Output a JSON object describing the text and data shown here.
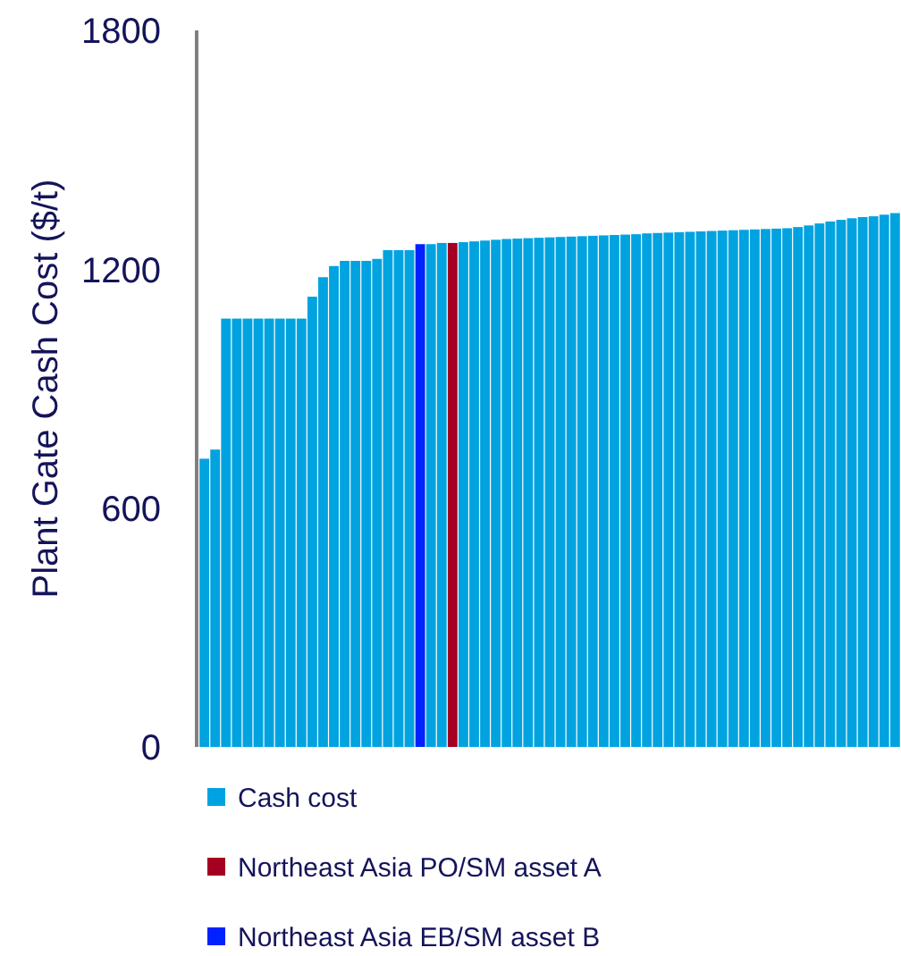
{
  "chart_data": {
    "type": "bar",
    "ylabel": "Plant Gate Cash Cost ($/t)",
    "stacked": true,
    "ylim": [
      0,
      1800
    ],
    "yticks": [
      0,
      600,
      1200,
      1800
    ],
    "grid": false,
    "legend": "bottom",
    "categories": [
      null,
      null,
      null,
      null,
      null,
      null,
      null,
      null,
      null,
      null,
      null,
      null,
      null,
      null,
      null,
      null,
      null,
      null,
      null,
      null,
      null,
      null,
      null,
      null,
      null,
      null,
      null,
      null,
      null,
      null,
      null,
      null,
      null,
      null,
      null,
      null,
      null,
      null,
      null,
      null,
      null,
      null,
      null,
      null,
      null,
      null,
      null,
      null,
      null,
      null,
      null,
      null,
      null,
      null,
      null,
      null,
      null,
      null,
      null,
      null,
      null,
      null,
      null,
      null,
      null
    ],
    "series": [
      {
        "name": "Cash cost",
        "color": "#00a3e0",
        "values": [
          724,
          747,
          1076,
          1076,
          1076,
          1076,
          1076,
          1076,
          1076,
          1076,
          1131,
          1180,
          1208,
          1221,
          1221,
          1221,
          1226,
          1248,
          1248,
          1248,
          null,
          1263,
          1266,
          null,
          1268,
          1270,
          1272,
          1274,
          1276,
          1277,
          1278,
          1279,
          1280,
          1281,
          1282,
          1283,
          1284,
          1285,
          1286,
          1287,
          1288,
          1290,
          1291,
          1292,
          1293,
          1294,
          1295,
          1296,
          1297,
          1298,
          1299,
          1300,
          1301,
          1302,
          1303,
          1306,
          1310,
          1315,
          1320,
          1324,
          1328,
          1331,
          1333,
          1337,
          1341
        ]
      },
      {
        "name": "Northeast Asia PO/SM asset A",
        "color": "#a50021",
        "values": [
          null,
          null,
          null,
          null,
          null,
          null,
          null,
          null,
          null,
          null,
          null,
          null,
          null,
          null,
          null,
          null,
          null,
          null,
          null,
          null,
          null,
          null,
          null,
          1266,
          null,
          null,
          null,
          null,
          null,
          null,
          null,
          null,
          null,
          null,
          null,
          null,
          null,
          null,
          null,
          null,
          null,
          null,
          null,
          null,
          null,
          null,
          null,
          null,
          null,
          null,
          null,
          null,
          null,
          null,
          null,
          null,
          null,
          null,
          null,
          null,
          null,
          null,
          null,
          null,
          null
        ]
      },
      {
        "name": "Northeast Asia EB/SM asset B",
        "color": "#0022ff",
        "values": [
          null,
          null,
          null,
          null,
          null,
          null,
          null,
          null,
          null,
          null,
          null,
          null,
          null,
          null,
          null,
          null,
          null,
          null,
          null,
          null,
          1263,
          null,
          null,
          null,
          null,
          null,
          null,
          null,
          null,
          null,
          null,
          null,
          null,
          null,
          null,
          null,
          null,
          null,
          null,
          null,
          null,
          null,
          null,
          null,
          null,
          null,
          null,
          null,
          null,
          null,
          null,
          null,
          null,
          null,
          null,
          null,
          null,
          null,
          null,
          null,
          null,
          null,
          null,
          null,
          null
        ]
      }
    ]
  }
}
